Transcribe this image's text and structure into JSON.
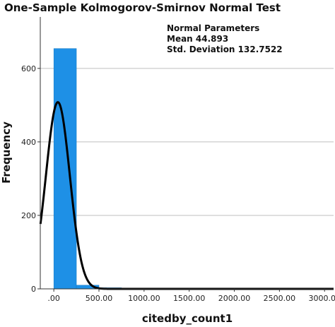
{
  "chart_data": {
    "type": "bar",
    "title": "One-Sample Kolmogorov-Smirnov Normal Test",
    "xlabel": "citedby_count1",
    "ylabel": "Frequency",
    "xlim": [
      -150,
      3100
    ],
    "ylim": [
      0,
      740
    ],
    "x_ticks": [
      0,
      500,
      1000,
      1500,
      2000,
      2500,
      3000
    ],
    "x_tick_labels": [
      ".00",
      "500.00",
      "1000.00",
      "1500.00",
      "2000.00",
      "2500.00",
      "3000.00"
    ],
    "y_ticks": [
      0,
      200,
      400,
      600
    ],
    "y_tick_labels": [
      "0",
      "200",
      "400",
      "600"
    ],
    "grid": "horizontal",
    "bin_width": 250,
    "bins": [
      {
        "start": 0,
        "end": 250,
        "count": 654
      },
      {
        "start": 250,
        "end": 500,
        "count": 10
      },
      {
        "start": 500,
        "end": 750,
        "count": 3
      },
      {
        "start": 750,
        "end": 1000,
        "count": 1
      },
      {
        "start": 1000,
        "end": 1250,
        "count": 1
      },
      {
        "start": 1250,
        "end": 1500,
        "count": 1
      },
      {
        "start": 1500,
        "end": 1750,
        "count": 1
      },
      {
        "start": 1750,
        "end": 2000,
        "count": 1
      },
      {
        "start": 2000,
        "end": 2250,
        "count": 1
      },
      {
        "start": 2250,
        "end": 2500,
        "count": 1
      },
      {
        "start": 2500,
        "end": 2750,
        "count": 1
      },
      {
        "start": 2750,
        "end": 3000,
        "count": 1
      }
    ],
    "normal_curve": {
      "mean": 44.893,
      "std": 132.7522,
      "peak": 508
    },
    "annotations": {
      "heading": "Normal Parameters",
      "mean": "Mean 44.893",
      "std": "Std. Deviation 132.7522"
    },
    "colors": {
      "bar": "#1e90e6",
      "bar_edge": "#1577c2",
      "curve": "#000000",
      "grid": "#bfbfbf",
      "axis": "#333333"
    }
  }
}
